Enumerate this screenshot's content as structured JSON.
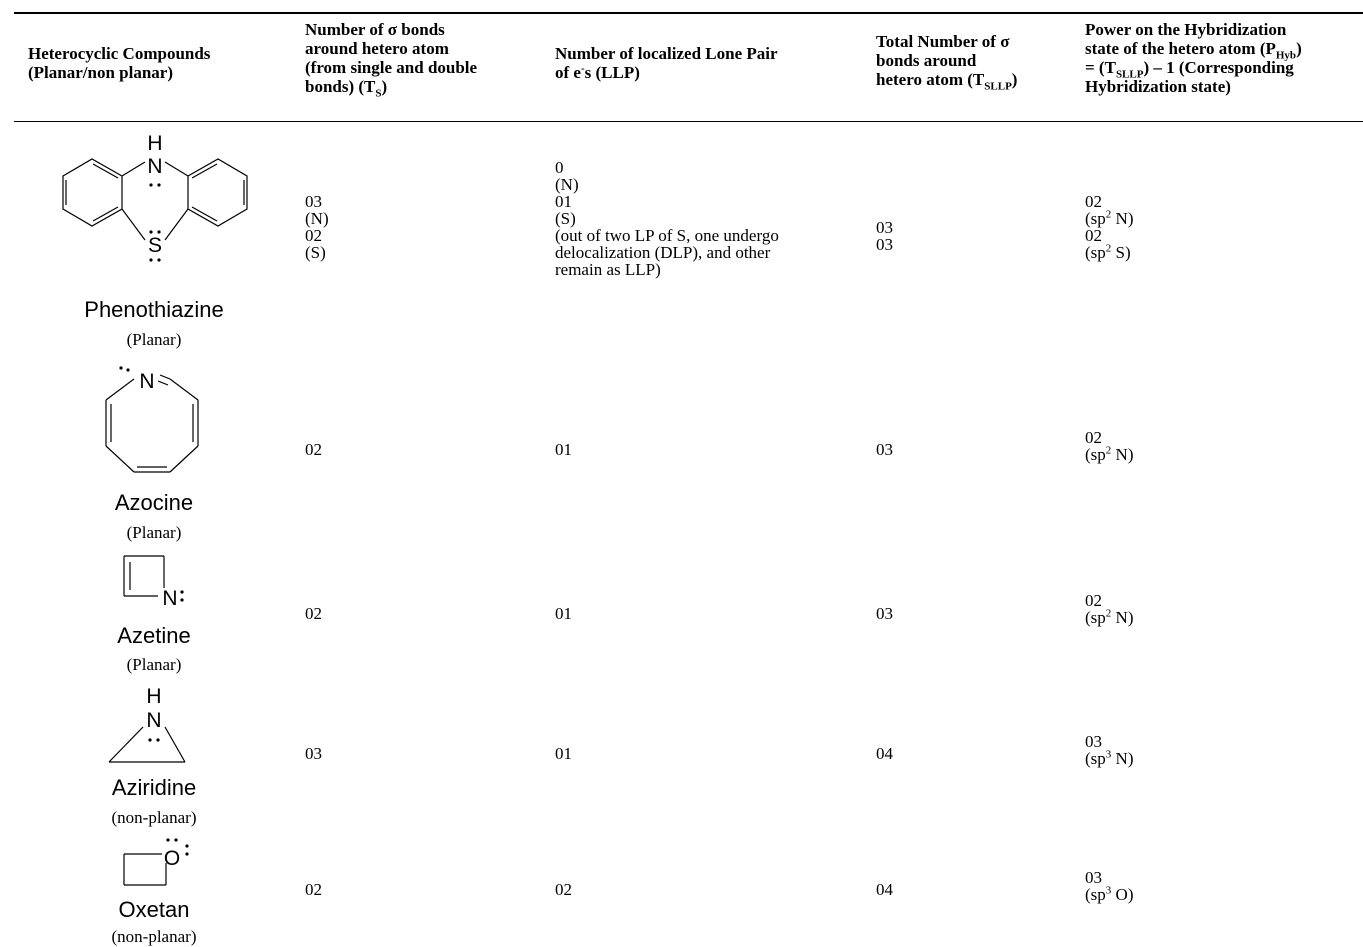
{
  "headers": {
    "col1": [
      "Heterocyclic Compounds",
      "(Planar/non planar)"
    ],
    "col2": [
      "Number of σ bonds",
      "around hetero atom",
      "(from single and double",
      "bonds) (T",
      "S",
      ")"
    ],
    "col3": [
      "Number of localized Lone Pair",
      "of e",
      "-",
      "s (LLP)"
    ],
    "col4": [
      "Total Number of σ",
      "bonds around",
      "hetero atom (T",
      "SLLP",
      ")"
    ],
    "col5": [
      "Power on the Hybridization",
      "state of the hetero atom (P",
      "Hyb",
      ")",
      "= (T",
      "SLLP",
      ") – 1 (Corresponding",
      "Hybridization state)"
    ]
  },
  "rows": [
    {
      "name": "Phenothiazine",
      "type": "(Planar)",
      "atoms": [
        "H",
        "N",
        "S"
      ],
      "ts": [
        "03",
        "(N)",
        "02",
        "(S)"
      ],
      "llp": [
        "0",
        "(N)",
        "01",
        "(S)",
        "(out of two LP of S, one undergo",
        "delocalization (DLP), and other",
        "remain as LLP)"
      ],
      "tsllp": [
        "03",
        "03"
      ],
      "phyb": [
        {
          "value": "02",
          "sp": "sp",
          "sup": "2",
          "atom": " N)"
        },
        {
          "value": "02",
          "sp": "sp",
          "sup": "2",
          "atom": " S)"
        }
      ]
    },
    {
      "name": "Azocine",
      "type": "(Planar)",
      "atoms": [
        "N"
      ],
      "ts": [
        "02"
      ],
      "llp": [
        "01"
      ],
      "tsllp": [
        "03"
      ],
      "phyb": [
        {
          "value": "02",
          "sp": "sp",
          "sup": "2",
          "atom": " N)"
        }
      ]
    },
    {
      "name": "Azetine",
      "type": "(Planar)",
      "atoms": [
        "N"
      ],
      "ts": [
        "02"
      ],
      "llp": [
        "01"
      ],
      "tsllp": [
        "03"
      ],
      "phyb": [
        {
          "value": "02",
          "sp": "sp",
          "sup": "2",
          "atom": " N)"
        }
      ]
    },
    {
      "name": "Aziridine",
      "type": "(non-planar)",
      "atoms": [
        "H",
        "N"
      ],
      "ts": [
        "03"
      ],
      "llp": [
        "01"
      ],
      "tsllp": [
        "04"
      ],
      "phyb": [
        {
          "value": "03",
          "sp": "sp",
          "sup": "3",
          "atom": " N)"
        }
      ]
    },
    {
      "name": "Oxetan",
      "type": "(non-planar)",
      "atoms": [
        "O"
      ],
      "ts": [
        "02"
      ],
      "llp": [
        "02"
      ],
      "tsllp": [
        "04"
      ],
      "phyb": [
        {
          "value": "03",
          "sp": "sp",
          "sup": "3",
          "atom": " O)"
        }
      ]
    }
  ]
}
